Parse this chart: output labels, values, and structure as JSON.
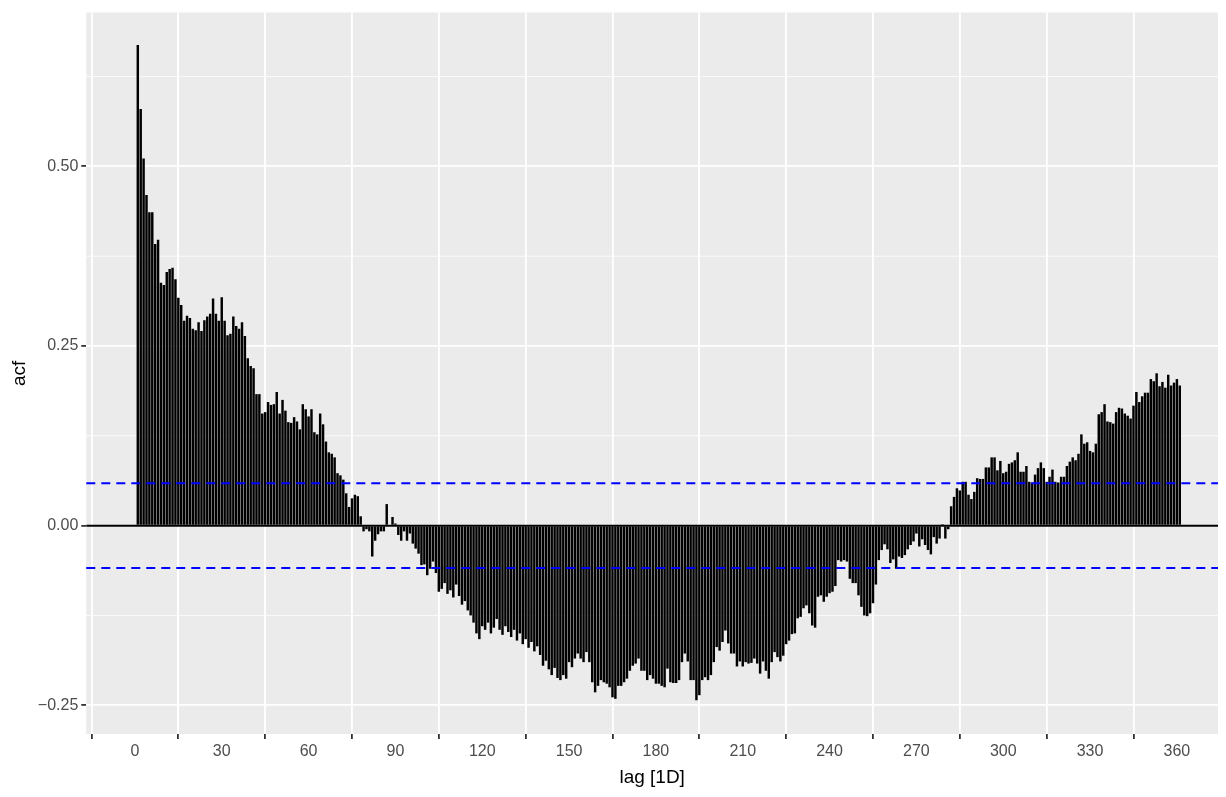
{
  "chart_data": {
    "type": "bar",
    "xlabel": "lag [1D]",
    "ylabel": "acf",
    "color": "#000000",
    "grid": true,
    "xlim": [
      -16.8,
      374.2
    ],
    "xticks": [
      0,
      30,
      60,
      90,
      120,
      150,
      180,
      210,
      240,
      270,
      300,
      330,
      360
    ],
    "ylim": [
      -0.29,
      0.714
    ],
    "yticks": [
      {
        "value": -0.25,
        "label": "−0.25"
      },
      {
        "value": 0,
        "label": "0.00"
      },
      {
        "value": 0.25,
        "label": "0.25"
      },
      {
        "value": 0.5,
        "label": "0.50"
      }
    ],
    "ref_lines": [
      {
        "axis": "y",
        "value": 0,
        "color": "#000000",
        "line_style": "solid"
      },
      {
        "axis": "y",
        "value": 0.059,
        "color": "#0000ff",
        "line_style": "dashed"
      },
      {
        "axis": "y",
        "value": -0.059,
        "color": "#0000ff",
        "line_style": "dashed"
      }
    ],
    "x": [
      1,
      2,
      3,
      4,
      5,
      6,
      7,
      8,
      9,
      10,
      11,
      12,
      13,
      14,
      15,
      16,
      17,
      18,
      19,
      20,
      21,
      22,
      23,
      24,
      25,
      26,
      27,
      28,
      29,
      30,
      31,
      32,
      33,
      34,
      35,
      36,
      37,
      38,
      39,
      40,
      41,
      42,
      43,
      44,
      45,
      46,
      47,
      48,
      49,
      50,
      51,
      52,
      53,
      54,
      55,
      56,
      57,
      58,
      59,
      60,
      61,
      62,
      63,
      64,
      65,
      66,
      67,
      68,
      69,
      70,
      71,
      72,
      73,
      74,
      75,
      76,
      77,
      78,
      79,
      80,
      81,
      82,
      83,
      84,
      85,
      86,
      87,
      88,
      89,
      90,
      91,
      92,
      93,
      94,
      95,
      96,
      97,
      98,
      99,
      100,
      101,
      102,
      103,
      104,
      105,
      106,
      107,
      108,
      109,
      110,
      111,
      112,
      113,
      114,
      115,
      116,
      117,
      118,
      119,
      120,
      121,
      122,
      123,
      124,
      125,
      126,
      127,
      128,
      129,
      130,
      131,
      132,
      133,
      134,
      135,
      136,
      137,
      138,
      139,
      140,
      141,
      142,
      143,
      144,
      145,
      146,
      147,
      148,
      149,
      150,
      151,
      152,
      153,
      154,
      155,
      156,
      157,
      158,
      159,
      160,
      161,
      162,
      163,
      164,
      165,
      166,
      167,
      168,
      169,
      170,
      171,
      172,
      173,
      174,
      175,
      176,
      177,
      178,
      179,
      180,
      181,
      182,
      183,
      184,
      185,
      186,
      187,
      188,
      189,
      190,
      191,
      192,
      193,
      194,
      195,
      196,
      197,
      198,
      199,
      200,
      201,
      202,
      203,
      204,
      205,
      206,
      207,
      208,
      209,
      210,
      211,
      212,
      213,
      214,
      215,
      216,
      217,
      218,
      219,
      220,
      221,
      222,
      223,
      224,
      225,
      226,
      227,
      228,
      229,
      230,
      231,
      232,
      233,
      234,
      235,
      236,
      237,
      238,
      239,
      240,
      241,
      242,
      243,
      244,
      245,
      246,
      247,
      248,
      249,
      250,
      251,
      252,
      253,
      254,
      255,
      256,
      257,
      258,
      259,
      260,
      261,
      262,
      263,
      264,
      265,
      266,
      267,
      268,
      269,
      270,
      271,
      272,
      273,
      274,
      275,
      276,
      277,
      278,
      279,
      280,
      281,
      282,
      283,
      284,
      285,
      286,
      287,
      288,
      289,
      290,
      291,
      292,
      293,
      294,
      295,
      296,
      297,
      298,
      299,
      300,
      301,
      302,
      303,
      304,
      305,
      306,
      307,
      308,
      309,
      310,
      311,
      312,
      313,
      314,
      315,
      316,
      317,
      318,
      319,
      320,
      321,
      322,
      323,
      324,
      325,
      326,
      327,
      328,
      329,
      330,
      331,
      332,
      333,
      334,
      335,
      336,
      337,
      338,
      339,
      340,
      341,
      342,
      343,
      344,
      345,
      346,
      347,
      348,
      349,
      350,
      351,
      352,
      353,
      354,
      355,
      356,
      357,
      358,
      359,
      360,
      361
    ],
    "values": [
      0.669,
      0.58,
      0.511,
      0.46,
      0.436,
      0.436,
      0.392,
      0.398,
      0.338,
      0.335,
      0.353,
      0.357,
      0.359,
      0.343,
      0.317,
      0.307,
      0.285,
      0.292,
      0.289,
      0.274,
      0.272,
      0.283,
      0.271,
      0.286,
      0.291,
      0.295,
      0.316,
      0.295,
      0.285,
      0.318,
      0.285,
      0.265,
      0.267,
      0.291,
      0.278,
      0.274,
      0.283,
      0.264,
      0.233,
      0.222,
      0.219,
      0.183,
      0.183,
      0.156,
      0.158,
      0.172,
      0.168,
      0.169,
      0.186,
      0.156,
      0.175,
      0.16,
      0.144,
      0.143,
      0.151,
      0.145,
      0.134,
      0.169,
      0.162,
      0.152,
      0.162,
      0.13,
      0.127,
      0.156,
      0.141,
      0.117,
      0.102,
      0.1,
      0.095,
      0.073,
      0.07,
      0.064,
      0.045,
      0.026,
      0.038,
      0.043,
      0.041,
      0.013,
      -0.008,
      -0.005,
      -0.008,
      -0.043,
      -0.021,
      -0.012,
      -0.008,
      -0.008,
      0.03,
      null,
      0.012,
      0.003,
      -0.013,
      -0.021,
      -0.008,
      -0.021,
      -0.011,
      -0.025,
      -0.032,
      -0.039,
      -0.055,
      -0.054,
      -0.069,
      -0.06,
      -0.05,
      -0.066,
      -0.092,
      -0.088,
      -0.08,
      -0.095,
      -0.09,
      -0.1,
      -0.082,
      -0.098,
      -0.11,
      -0.105,
      -0.118,
      -0.125,
      -0.135,
      -0.15,
      -0.158,
      -0.14,
      -0.145,
      -0.135,
      -0.15,
      -0.142,
      -0.13,
      -0.145,
      -0.152,
      -0.14,
      -0.148,
      -0.155,
      -0.145,
      -0.16,
      -0.15,
      -0.165,
      -0.158,
      -0.17,
      -0.162,
      -0.175,
      -0.168,
      -0.18,
      -0.195,
      -0.188,
      -0.2,
      -0.208,
      -0.198,
      -0.212,
      -0.215,
      -0.208,
      -0.213,
      -0.19,
      -0.197,
      -0.185,
      -0.178,
      -0.185,
      -0.19,
      -0.176,
      -0.19,
      -0.218,
      -0.232,
      -0.223,
      -0.215,
      -0.218,
      -0.22,
      -0.225,
      -0.239,
      -0.241,
      -0.223,
      -0.223,
      -0.218,
      -0.213,
      -0.202,
      -0.195,
      -0.192,
      -0.185,
      -0.202,
      -0.202,
      -0.215,
      -0.208,
      -0.213,
      -0.22,
      -0.22,
      -0.223,
      -0.225,
      -0.199,
      -0.218,
      -0.219,
      -0.219,
      -0.215,
      -0.19,
      -0.178,
      -0.189,
      -0.215,
      -0.215,
      -0.243,
      -0.236,
      -0.215,
      -0.211,
      -0.215,
      -0.208,
      -0.19,
      -0.169,
      -0.174,
      -0.162,
      -0.146,
      -0.164,
      -0.178,
      -0.178,
      -0.196,
      -0.189,
      -0.196,
      -0.19,
      -0.192,
      -0.191,
      -0.185,
      -0.192,
      -0.206,
      -0.189,
      -0.202,
      -0.213,
      -0.19,
      -0.176,
      -0.183,
      -0.189,
      -0.181,
      -0.165,
      -0.16,
      -0.151,
      -0.15,
      -0.129,
      -0.127,
      -0.115,
      -0.111,
      -0.122,
      -0.139,
      -0.142,
      -0.099,
      -0.097,
      -0.106,
      -0.099,
      -0.094,
      -0.092,
      -0.084,
      -0.048,
      -0.05,
      -0.048,
      -0.05,
      -0.074,
      -0.08,
      -0.08,
      -0.097,
      -0.113,
      -0.125,
      -0.126,
      -0.122,
      -0.108,
      -0.082,
      -0.048,
      -0.034,
      -0.026,
      -0.033,
      -0.052,
      -0.047,
      -0.06,
      -0.043,
      -0.045,
      -0.041,
      -0.033,
      -0.027,
      -0.022,
      -0.011,
      -0.029,
      -0.019,
      -0.027,
      -0.034,
      -0.04,
      -0.016,
      -0.025,
      -0.018,
      0.002,
      -0.018,
      -0.005,
      0.027,
      0.04,
      0.052,
      0.049,
      0.061,
      0.061,
      0.043,
      0.037,
      0.047,
      0.066,
      0.065,
      0.065,
      0.081,
      0.081,
      0.095,
      0.095,
      0.077,
      0.09,
      0.073,
      0.075,
      0.086,
      0.088,
      0.091,
      0.102,
      0.075,
      0.075,
      0.083,
      0.061,
      0.06,
      0.071,
      0.08,
      0.088,
      0.08,
      0.061,
      0.068,
      0.078,
      0.061,
      0.06,
      0.068,
      0.068,
      0.083,
      0.089,
      0.095,
      0.091,
      0.1,
      0.127,
      0.114,
      0.116,
      0.104,
      0.102,
      0.114,
      0.155,
      0.158,
      0.169,
      0.145,
      0.144,
      0.142,
      0.158,
      0.164,
      0.163,
      0.156,
      0.153,
      0.149,
      0.167,
      0.186,
      0.172,
      0.18,
      0.185,
      0.185,
      0.204,
      0.201,
      0.212,
      0.194,
      0.2,
      0.192,
      0.21,
      0.195,
      0.199,
      0.204,
      0.195
    ]
  }
}
